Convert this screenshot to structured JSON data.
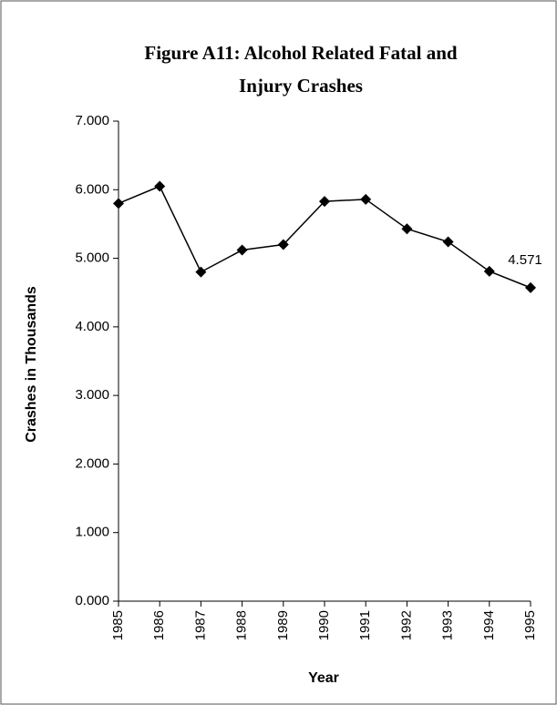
{
  "chart_data": {
    "type": "line",
    "title": [
      "Figure A11: Alcohol Related Fatal and",
      "Injury Crashes"
    ],
    "x_label": "Year",
    "y_label": "Crashes in Thousands",
    "categories": [
      "1985",
      "1986",
      "1987",
      "1988",
      "1989",
      "1990",
      "1991",
      "1992",
      "1993",
      "1994",
      "1995"
    ],
    "series": [
      {
        "name": "Crashes",
        "color": "#000000",
        "values": [
          5.8,
          6.05,
          4.8,
          5.12,
          5.2,
          5.83,
          5.86,
          5.43,
          5.24,
          4.81,
          4.571
        ],
        "value_labels": [
          null,
          null,
          null,
          null,
          null,
          null,
          null,
          null,
          null,
          null,
          "4.571"
        ]
      }
    ],
    "ylim": [
      0,
      7
    ],
    "yticks": [
      {
        "value": 0,
        "label": "0.000"
      },
      {
        "value": 1,
        "label": "1.000"
      },
      {
        "value": 2,
        "label": "2.000"
      },
      {
        "value": 3,
        "label": "3.000"
      },
      {
        "value": 4,
        "label": "4.000"
      },
      {
        "value": 5,
        "label": "5.000"
      },
      {
        "value": 6,
        "label": "6.000"
      },
      {
        "value": 7,
        "label": "7.000"
      }
    ],
    "grid": false
  }
}
